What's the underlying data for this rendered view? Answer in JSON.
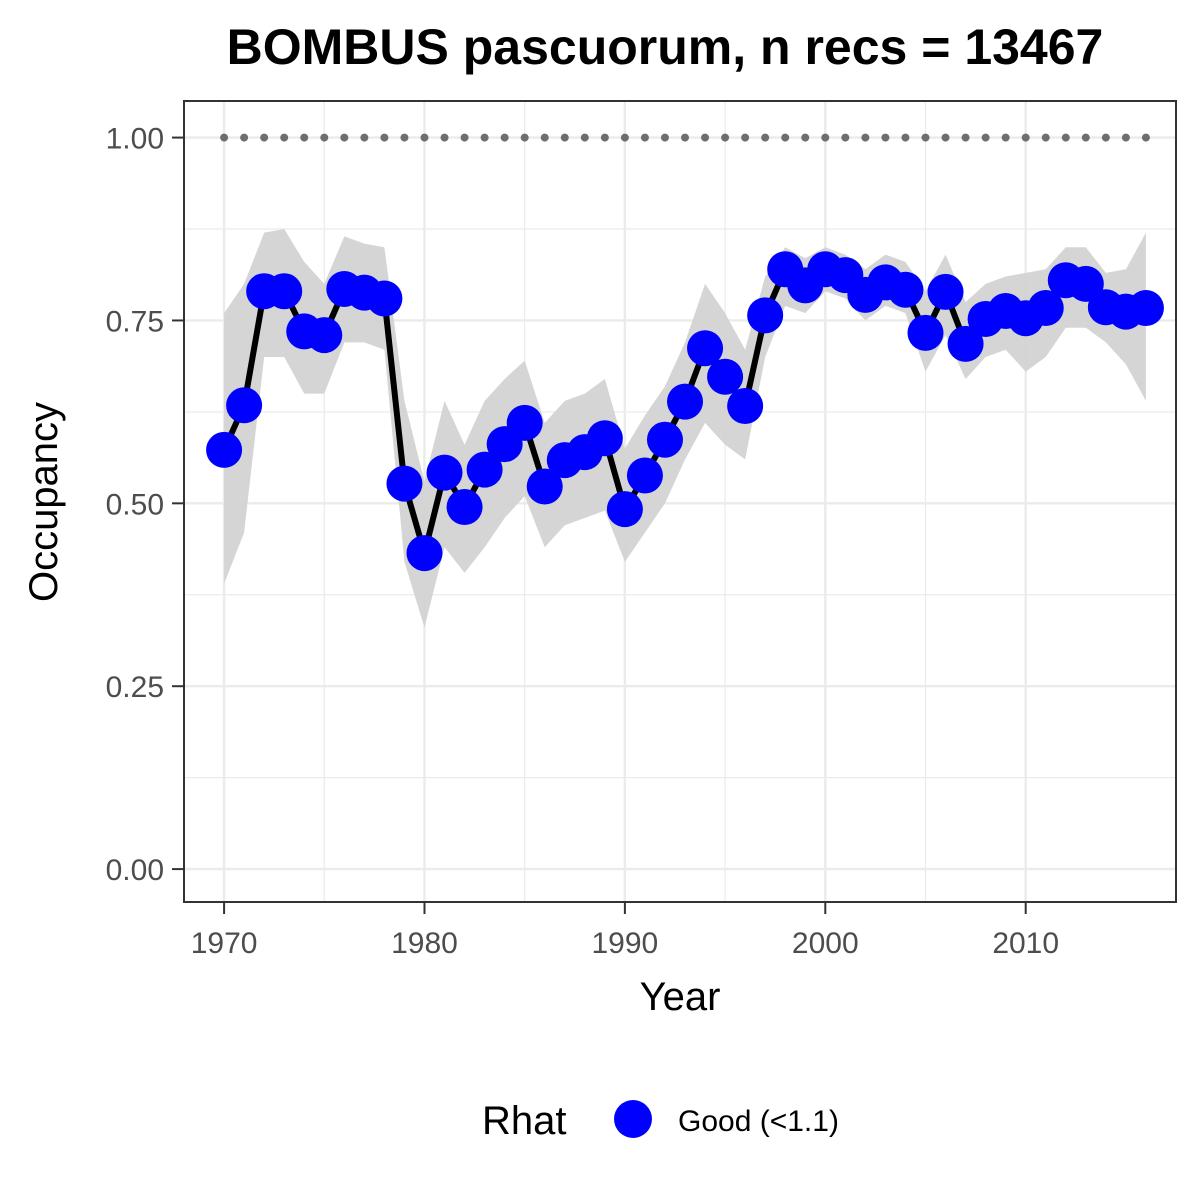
{
  "chart_data": {
    "type": "line",
    "title": "BOMBUS pascuorum, n recs = 13467",
    "xlabel": "Year",
    "ylabel": "Occupancy",
    "xlim": [
      1968,
      2017.5
    ],
    "ylim": [
      -0.045,
      1.05
    ],
    "x_ticks": [
      1970,
      1980,
      1990,
      2000,
      2010
    ],
    "x_tick_labels": [
      "1970",
      "1980",
      "1990",
      "2000",
      "2010"
    ],
    "y_ticks": [
      0,
      0.25,
      0.5,
      0.75,
      1.0
    ],
    "y_tick_labels": [
      "0.00",
      "0.25",
      "0.50",
      "0.75",
      "1.00"
    ],
    "grid": true,
    "x": [
      1970,
      1971,
      1972,
      1973,
      1974,
      1975,
      1976,
      1977,
      1978,
      1979,
      1980,
      1981,
      1982,
      1983,
      1984,
      1985,
      1986,
      1987,
      1988,
      1989,
      1990,
      1991,
      1992,
      1993,
      1994,
      1995,
      1996,
      1997,
      1998,
      1999,
      2000,
      2001,
      2002,
      2003,
      2004,
      2005,
      2006,
      2007,
      2008,
      2009,
      2010,
      2011,
      2012,
      2013,
      2014,
      2015,
      2016
    ],
    "occupancy": [
      0.573,
      0.634,
      0.79,
      0.79,
      0.735,
      0.73,
      0.793,
      0.788,
      0.78,
      0.527,
      0.432,
      0.542,
      0.495,
      0.546,
      0.581,
      0.61,
      0.523,
      0.559,
      0.57,
      0.589,
      0.492,
      0.538,
      0.587,
      0.639,
      0.712,
      0.673,
      0.633,
      0.757,
      0.82,
      0.798,
      0.82,
      0.812,
      0.785,
      0.802,
      0.792,
      0.733,
      0.789,
      0.718,
      0.752,
      0.763,
      0.753,
      0.767,
      0.805,
      0.8,
      0.768,
      0.762,
      0.767
    ],
    "lower": [
      0.39,
      0.46,
      0.7,
      0.7,
      0.65,
      0.65,
      0.72,
      0.72,
      0.71,
      0.42,
      0.33,
      0.44,
      0.405,
      0.44,
      0.48,
      0.51,
      0.44,
      0.47,
      0.48,
      0.49,
      0.42,
      0.46,
      0.5,
      0.56,
      0.61,
      0.58,
      0.56,
      0.7,
      0.77,
      0.76,
      0.79,
      0.78,
      0.75,
      0.77,
      0.76,
      0.68,
      0.73,
      0.67,
      0.7,
      0.71,
      0.68,
      0.7,
      0.74,
      0.74,
      0.72,
      0.69,
      0.64
    ],
    "upper": [
      0.76,
      0.8,
      0.87,
      0.875,
      0.83,
      0.8,
      0.865,
      0.855,
      0.85,
      0.64,
      0.53,
      0.64,
      0.58,
      0.64,
      0.67,
      0.695,
      0.61,
      0.64,
      0.65,
      0.67,
      0.575,
      0.62,
      0.66,
      0.72,
      0.8,
      0.76,
      0.71,
      0.81,
      0.85,
      0.835,
      0.85,
      0.84,
      0.82,
      0.84,
      0.83,
      0.79,
      0.84,
      0.775,
      0.8,
      0.81,
      0.815,
      0.82,
      0.85,
      0.85,
      0.815,
      0.82,
      0.87
    ],
    "reference_line": 1.0,
    "legend": {
      "title": "Rhat",
      "entries": [
        {
          "label": "Good (<1.1)",
          "color": "#0000ff"
        }
      ],
      "placement": "bottom"
    },
    "colors": {
      "points": "#0000ff",
      "line": "#000000",
      "ribbon": "#d3d3d3",
      "reference": "#6e6e6e",
      "grid": "#ebebeb",
      "panel_border": "#333333"
    }
  }
}
